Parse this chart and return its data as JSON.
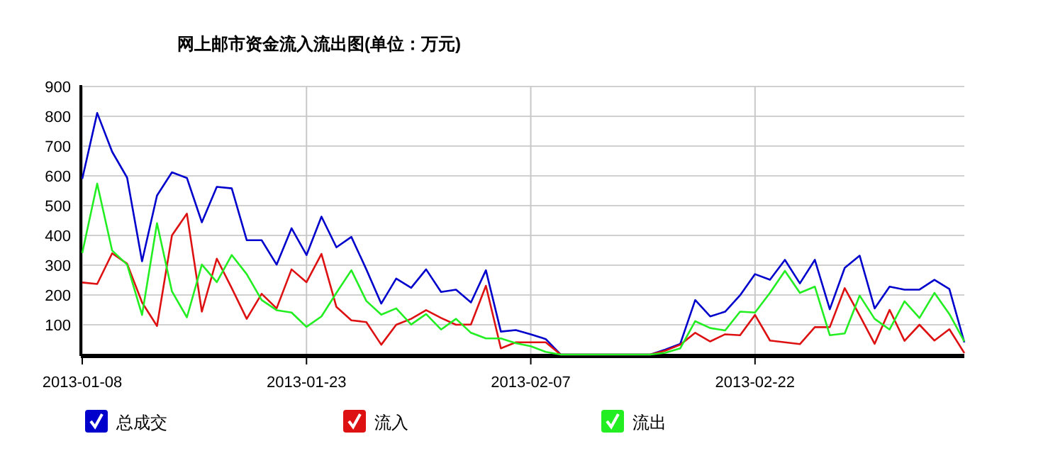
{
  "chart_data": {
    "type": "line",
    "title": "网上邮市资金流入流出图(单位：万元)",
    "x": [
      "2013-01-08",
      "2013-01-09",
      "2013-01-10",
      "2013-01-11",
      "2013-01-12",
      "2013-01-13",
      "2013-01-14",
      "2013-01-15",
      "2013-01-16",
      "2013-01-17",
      "2013-01-18",
      "2013-01-19",
      "2013-01-20",
      "2013-01-21",
      "2013-01-22",
      "2013-01-23",
      "2013-01-24",
      "2013-01-25",
      "2013-01-26",
      "2013-01-27",
      "2013-01-28",
      "2013-01-29",
      "2013-01-30",
      "2013-01-31",
      "2013-02-01",
      "2013-02-02",
      "2013-02-03",
      "2013-02-04",
      "2013-02-05",
      "2013-02-06",
      "2013-02-07",
      "2013-02-08",
      "2013-02-09",
      "2013-02-10",
      "2013-02-11",
      "2013-02-12",
      "2013-02-13",
      "2013-02-14",
      "2013-02-15",
      "2013-02-16",
      "2013-02-17",
      "2013-02-18",
      "2013-02-19",
      "2013-02-20",
      "2013-02-21",
      "2013-02-22",
      "2013-02-23",
      "2013-02-24",
      "2013-02-25",
      "2013-02-26",
      "2013-02-27",
      "2013-02-28",
      "2013-03-01",
      "2013-03-02",
      "2013-03-03",
      "2013-03-04",
      "2013-03-05",
      "2013-03-06",
      "2013-03-07",
      "2013-03-08"
    ],
    "series": [
      {
        "name": "总成交",
        "color": "#0000cc",
        "values": [
          590,
          811,
          681,
          594,
          313,
          534,
          612,
          593,
          444,
          563,
          558,
          384,
          384,
          302,
          424,
          334,
          463,
          360,
          395,
          286,
          171,
          255,
          224,
          286,
          210,
          218,
          175,
          283,
          77,
          82,
          68,
          52,
          0,
          0,
          0,
          0,
          0,
          0,
          0,
          17,
          36,
          183,
          128,
          144,
          199,
          270,
          251,
          318,
          239,
          318,
          152,
          291,
          332,
          155,
          228,
          218,
          218,
          251,
          220,
          41
        ]
      },
      {
        "name": "流入",
        "color": "#dd1111",
        "values": [
          242,
          237,
          340,
          305,
          175,
          96,
          400,
          473,
          144,
          322,
          223,
          120,
          204,
          155,
          286,
          243,
          338,
          160,
          115,
          109,
          33,
          100,
          120,
          149,
          123,
          100,
          101,
          231,
          21,
          41,
          41,
          41,
          0,
          0,
          0,
          0,
          0,
          0,
          0,
          13,
          33,
          73,
          44,
          68,
          65,
          133,
          47,
          41,
          35,
          92,
          92,
          223,
          131,
          36,
          150,
          46,
          100,
          47,
          85,
          5
        ]
      },
      {
        "name": "流出",
        "color": "#22ee22",
        "values": [
          341,
          574,
          349,
          302,
          133,
          441,
          212,
          125,
          302,
          243,
          334,
          270,
          183,
          149,
          141,
          93,
          128,
          207,
          283,
          180,
          134,
          155,
          101,
          136,
          84,
          120,
          73,
          54,
          54,
          38,
          28,
          9,
          0,
          0,
          0,
          0,
          0,
          0,
          0,
          6,
          21,
          112,
          89,
          81,
          144,
          141,
          207,
          281,
          207,
          228,
          65,
          71,
          198,
          120,
          84,
          179,
          123,
          207,
          136,
          44
        ]
      }
    ],
    "xlim": [
      "2013-01-08",
      "2013-03-08"
    ],
    "xticks": [
      "2013-01-08",
      "2013-01-23",
      "2013-02-07",
      "2013-02-22"
    ],
    "ylim": [
      0,
      900
    ],
    "yticks": [
      100,
      200,
      300,
      400,
      500,
      600,
      700,
      800,
      900
    ],
    "grid": true,
    "legend": "bottom",
    "marker": "none",
    "line_style": "solid"
  }
}
